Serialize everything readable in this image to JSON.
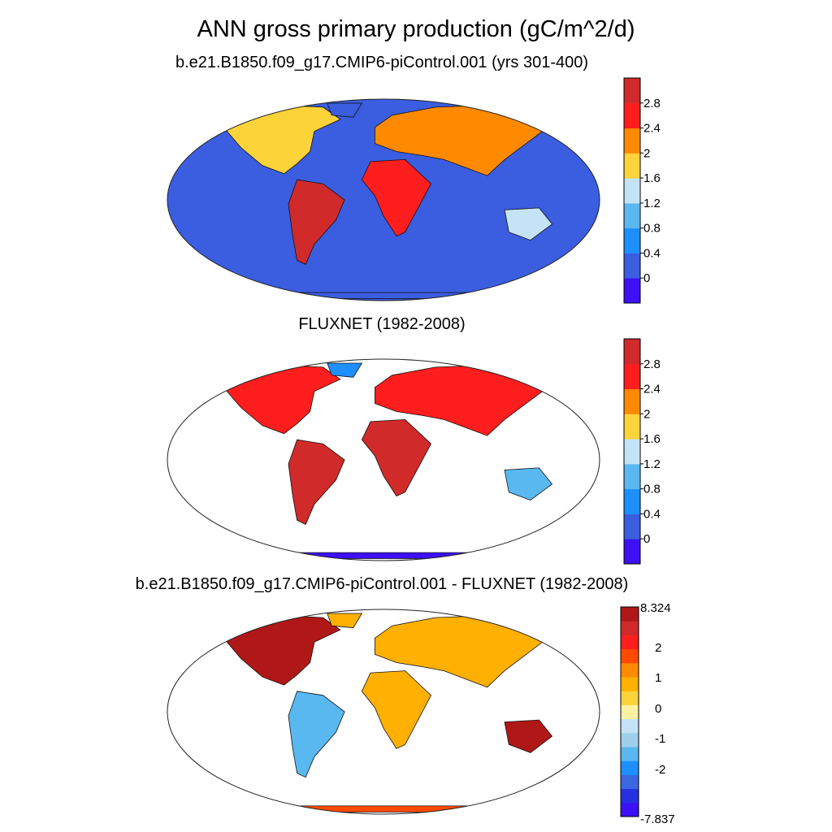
{
  "figure": {
    "title": "ANN gross primary production (gC/m^2/d)"
  },
  "panels": [
    {
      "title": "b.e21.B1850.f09_g17.CMIP6-piControl.001 (yrs 301-400)",
      "ocean_fill": "#3b5de0",
      "colorbar": {
        "tick_labels": [
          "2.8",
          "2.4",
          "2",
          "1.6",
          "1.2",
          "0.8",
          "0.4",
          "0"
        ],
        "colors": [
          "#3d10f5",
          "#3b5de0",
          "#1e8fff",
          "#5ab8f0",
          "#c4e3f6",
          "#fdd33a",
          "#ff8a00",
          "#ff1e1e",
          "#d02a2a"
        ]
      }
    },
    {
      "title": "FLUXNET (1982-2008)",
      "ocean_fill": "#ffffff",
      "colorbar": {
        "tick_labels": [
          "2.8",
          "2.4",
          "2",
          "1.6",
          "1.2",
          "0.8",
          "0.4",
          "0"
        ],
        "colors": [
          "#3d10f5",
          "#3b5de0",
          "#1e8fff",
          "#5ab8f0",
          "#c4e3f6",
          "#fdd33a",
          "#ff8a00",
          "#ff1e1e",
          "#d02a2a"
        ]
      }
    },
    {
      "title": "b.e21.B1850.f09_g17.CMIP6-piControl.001 - FLUXNET (1982-2008)",
      "ocean_fill": "#ffffff",
      "colorbar": {
        "tick_labels": [
          "8.324",
          "2",
          "1",
          "0",
          "-1",
          "-2",
          "-7.837"
        ],
        "colors": [
          "#3d10f5",
          "#2530e0",
          "#3a68e0",
          "#1e8fff",
          "#5ab8f0",
          "#9ed0ec",
          "#c4e3f6",
          "#fdf2a0",
          "#fdd33a",
          "#ffb000",
          "#ff8a00",
          "#ff4a00",
          "#ff1e1e",
          "#d02a2a",
          "#b01818"
        ]
      }
    }
  ]
}
